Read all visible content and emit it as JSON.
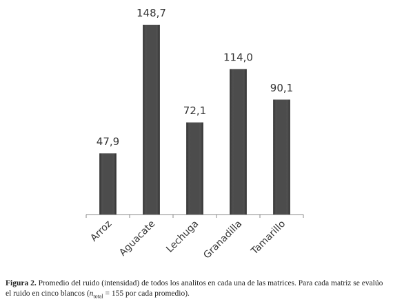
{
  "chart_data": {
    "type": "bar",
    "categories": [
      "Arroz",
      "Aguacate",
      "Lechuga",
      "Granadilla",
      "Tamarillo"
    ],
    "values": [
      47.9,
      148.7,
      72.1,
      114.0,
      90.1
    ],
    "value_labels": [
      "47,9",
      "148,7",
      "72,1",
      "114,0",
      "90,1"
    ],
    "color": "#3c3c3c",
    "ylim": [
      0,
      160
    ]
  },
  "caption": {
    "label": "Figura 2.",
    "text": "Promedio del ruido (intensidad) de todos los analitos en cada una de las matrices. Para cada matriz se evalúo el ruido en cinco blancos (",
    "variable": "n",
    "subscript": "total",
    "rest": " = 155 por cada promedio)."
  }
}
